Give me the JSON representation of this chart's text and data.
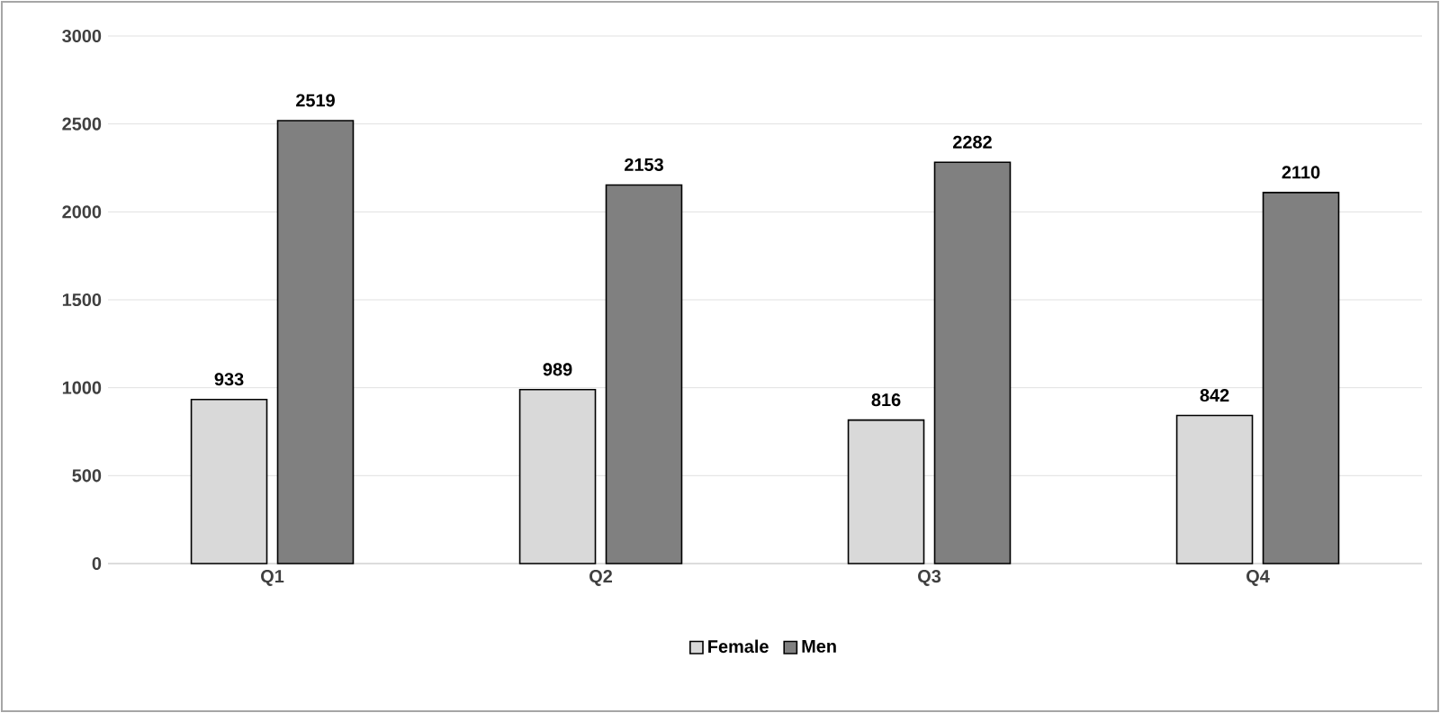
{
  "chart_data": {
    "type": "bar",
    "categories": [
      "Q1",
      "Q2",
      "Q3",
      "Q4"
    ],
    "series": [
      {
        "name": "Female",
        "color": "#d9d9d9",
        "values": [
          933,
          989,
          816,
          842
        ]
      },
      {
        "name": "Men",
        "color": "#808080",
        "values": [
          2519,
          2153,
          2282,
          2110
        ]
      }
    ],
    "ylim": [
      0,
      3000
    ],
    "yticks": [
      0,
      500,
      1000,
      1500,
      2000,
      2500,
      3000
    ],
    "grid": "y",
    "legend": "bottom",
    "data_labels": true
  }
}
